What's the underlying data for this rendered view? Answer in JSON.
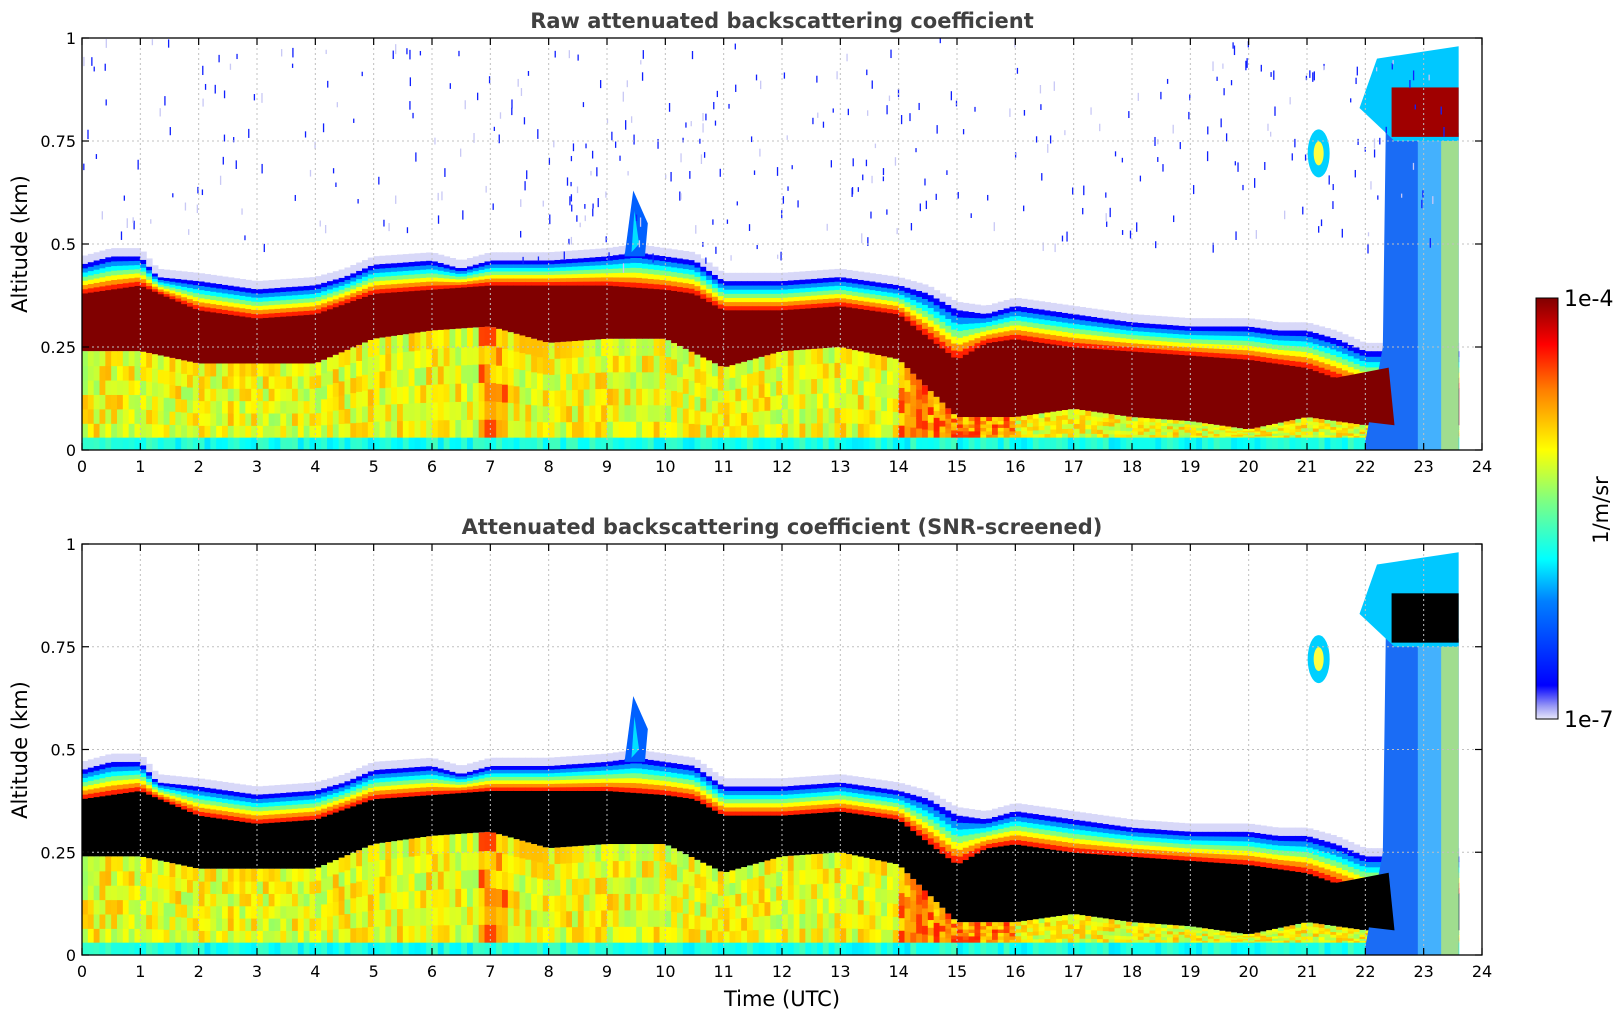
{
  "chart_data": [
    {
      "type": "heatmap",
      "title": "Raw attenuated backscattering coefficient",
      "xlabel": "",
      "ylabel": "Altitude (km)",
      "xlim": [
        0,
        24
      ],
      "ylim": [
        0,
        1
      ],
      "xticks": [
        "0",
        "1",
        "2",
        "3",
        "4",
        "5",
        "6",
        "7",
        "8",
        "9",
        "10",
        "11",
        "12",
        "13",
        "14",
        "15",
        "16",
        "17",
        "18",
        "19",
        "20",
        "21",
        "22",
        "23",
        "24"
      ],
      "yticks": [
        "0",
        "0.25",
        "0.5",
        "0.75",
        "1"
      ],
      "grid": true,
      "data_end_time": 23.6,
      "layer_top_km": [
        [
          0,
          0.45
        ],
        [
          0.5,
          0.47
        ],
        [
          1,
          0.47
        ],
        [
          1.3,
          0.42
        ],
        [
          2,
          0.41
        ],
        [
          3,
          0.39
        ],
        [
          4,
          0.4
        ],
        [
          4.5,
          0.42
        ],
        [
          5,
          0.45
        ],
        [
          6,
          0.46
        ],
        [
          6.5,
          0.44
        ],
        [
          7,
          0.46
        ],
        [
          8,
          0.46
        ],
        [
          9,
          0.47
        ],
        [
          9.5,
          0.48
        ],
        [
          10,
          0.47
        ],
        [
          10.5,
          0.46
        ],
        [
          11,
          0.41
        ],
        [
          12,
          0.41
        ],
        [
          13,
          0.42
        ],
        [
          14,
          0.4
        ],
        [
          14.5,
          0.38
        ],
        [
          15,
          0.34
        ],
        [
          15.5,
          0.33
        ],
        [
          16,
          0.35
        ],
        [
          16.5,
          0.34
        ],
        [
          17,
          0.33
        ],
        [
          18,
          0.31
        ],
        [
          19,
          0.3
        ],
        [
          20,
          0.3
        ],
        [
          20.5,
          0.29
        ],
        [
          21,
          0.29
        ],
        [
          21.5,
          0.27
        ],
        [
          22,
          0.24
        ]
      ],
      "dense_layer_top_km": [
        [
          0,
          0.38
        ],
        [
          1,
          0.4
        ],
        [
          2,
          0.34
        ],
        [
          3,
          0.32
        ],
        [
          4,
          0.33
        ],
        [
          5,
          0.38
        ],
        [
          6,
          0.39
        ],
        [
          7,
          0.4
        ],
        [
          8,
          0.4
        ],
        [
          9,
          0.4
        ],
        [
          10,
          0.39
        ],
        [
          10.5,
          0.38
        ],
        [
          11,
          0.34
        ],
        [
          12,
          0.34
        ],
        [
          13,
          0.35
        ],
        [
          14,
          0.33
        ],
        [
          15,
          0.22
        ],
        [
          15.5,
          0.26
        ],
        [
          16,
          0.27
        ],
        [
          17,
          0.25
        ],
        [
          18,
          0.24
        ],
        [
          19,
          0.23
        ],
        [
          20,
          0.22
        ],
        [
          21,
          0.2
        ],
        [
          22,
          0.15
        ]
      ],
      "dense_layer_bottom_km": [
        [
          0,
          0.24
        ],
        [
          1,
          0.24
        ],
        [
          2,
          0.21
        ],
        [
          3,
          0.21
        ],
        [
          4,
          0.21
        ],
        [
          5,
          0.27
        ],
        [
          6,
          0.29
        ],
        [
          7,
          0.3
        ],
        [
          8,
          0.26
        ],
        [
          9,
          0.27
        ],
        [
          10,
          0.27
        ],
        [
          11,
          0.2
        ],
        [
          12,
          0.24
        ],
        [
          13,
          0.25
        ],
        [
          14,
          0.22
        ],
        [
          15,
          0.08
        ],
        [
          16,
          0.08
        ],
        [
          17,
          0.1
        ],
        [
          18,
          0.08
        ],
        [
          19,
          0.07
        ],
        [
          20,
          0.05
        ],
        [
          21,
          0.08
        ],
        [
          22,
          0.06
        ]
      ],
      "plume": {
        "time_range": [
          9.3,
          9.7
        ],
        "top_km": 0.63
      },
      "high_cloud": {
        "time_range": [
          22.6,
          23.6
        ],
        "base_km": 0.75,
        "top_km": 0.98
      },
      "isolated_cloud": {
        "time_range": [
          21.0,
          21.4
        ],
        "center_km": 0.72
      },
      "noise": true,
      "saturated_color": "#800000"
    },
    {
      "type": "heatmap",
      "title": "Attenuated backscattering coefficient (SNR-screened)",
      "xlabel": "Time (UTC)",
      "ylabel": "Altitude (km)",
      "xlim": [
        0,
        24
      ],
      "ylim": [
        0,
        1
      ],
      "xticks": [
        "0",
        "1",
        "2",
        "3",
        "4",
        "5",
        "6",
        "7",
        "8",
        "9",
        "10",
        "11",
        "12",
        "13",
        "14",
        "15",
        "16",
        "17",
        "18",
        "19",
        "20",
        "21",
        "22",
        "23",
        "24"
      ],
      "yticks": [
        "0",
        "0.25",
        "0.5",
        "0.75",
        "1"
      ],
      "grid": true,
      "data_end_time": 23.6,
      "noise": false,
      "saturated_color": "#000000",
      "same_field_as": 0
    }
  ],
  "colorbar": {
    "label": "1/m/sr",
    "min_label": "1e-7",
    "max_label": "1e-4",
    "scale": "log",
    "colormap": "jet"
  }
}
